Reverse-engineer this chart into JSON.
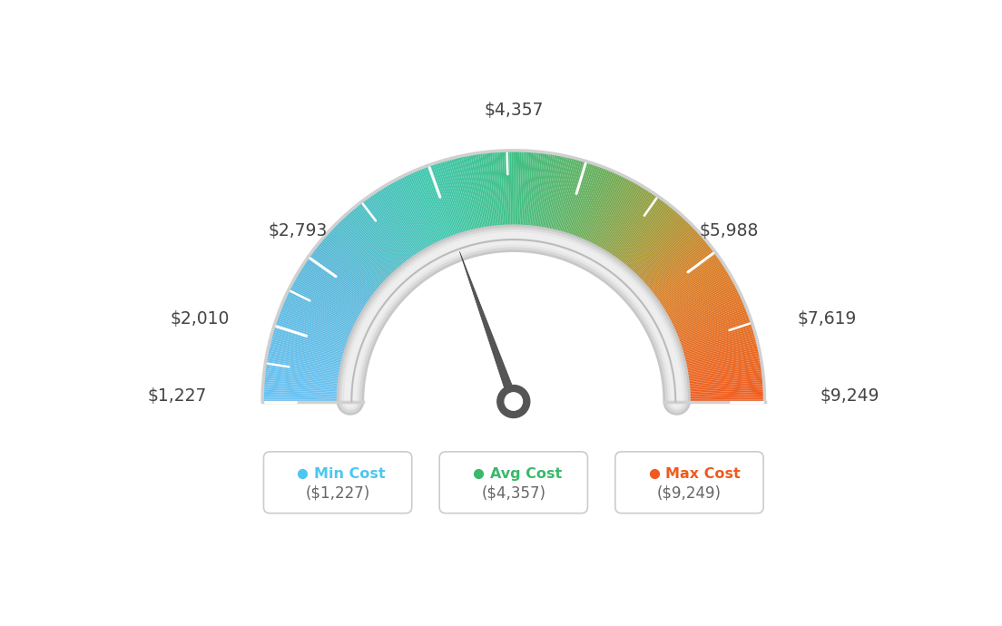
{
  "min_val": 1227,
  "avg_val": 4357,
  "max_val": 9249,
  "tick_labels": [
    "$1,227",
    "$2,010",
    "$2,793",
    "$4,357",
    "$5,988",
    "$7,619",
    "$9,249"
  ],
  "tick_values": [
    1227,
    2010,
    2793,
    4357,
    5988,
    7619,
    9249
  ],
  "all_tick_values": [
    1227,
    1618,
    2010,
    2401,
    2793,
    3575,
    4357,
    5172,
    5988,
    6803,
    7619,
    8434,
    9249
  ],
  "legend_items": [
    {
      "label": "Min Cost",
      "value": "($1,227)",
      "color": "#4dc6f0"
    },
    {
      "label": "Avg Cost",
      "value": "($4,357)",
      "color": "#3ab96a"
    },
    {
      "label": "Max Cost",
      "value": "($9,249)",
      "color": "#f05a1e"
    }
  ],
  "color_stops": [
    [
      0.0,
      [
        0.42,
        0.76,
        0.95
      ]
    ],
    [
      0.2,
      [
        0.35,
        0.72,
        0.85
      ]
    ],
    [
      0.38,
      [
        0.25,
        0.78,
        0.68
      ]
    ],
    [
      0.5,
      [
        0.25,
        0.75,
        0.52
      ]
    ],
    [
      0.62,
      [
        0.42,
        0.68,
        0.35
      ]
    ],
    [
      0.72,
      [
        0.65,
        0.6,
        0.22
      ]
    ],
    [
      0.8,
      [
        0.85,
        0.5,
        0.15
      ]
    ],
    [
      1.0,
      [
        0.94,
        0.36,
        0.12
      ]
    ]
  ],
  "background_color": "#ffffff",
  "label_positions": {
    "1227": [
      -1.22,
      0.02,
      "right"
    ],
    "2010": [
      -1.13,
      0.33,
      "right"
    ],
    "2793": [
      -0.74,
      0.68,
      "right"
    ],
    "4357": [
      0.0,
      1.16,
      "center"
    ],
    "5988": [
      0.74,
      0.68,
      "left"
    ],
    "7619": [
      1.13,
      0.33,
      "left"
    ],
    "9249": [
      1.22,
      0.02,
      "left"
    ]
  }
}
